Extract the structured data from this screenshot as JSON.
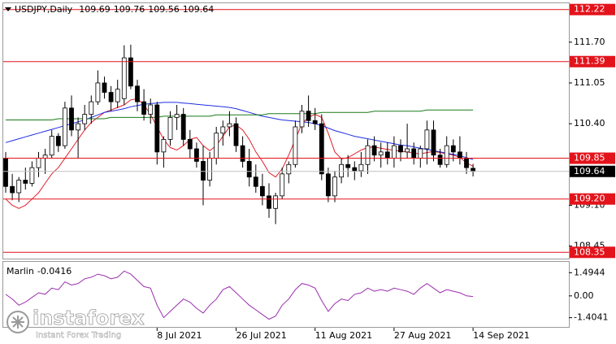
{
  "chart_data": {
    "type": "candlestick",
    "title": "USDJPY,Daily",
    "categories": [
      null,
      null,
      null,
      null,
      null,
      null,
      null,
      null,
      null,
      null,
      null,
      null,
      null,
      null,
      null,
      null,
      null,
      null,
      null,
      null,
      null,
      null,
      null,
      "8 Jul 2021",
      null,
      null,
      null,
      null,
      null,
      null,
      null,
      null,
      null,
      null,
      null,
      "26 Jul 2021",
      null,
      null,
      null,
      null,
      null,
      null,
      null,
      null,
      null,
      null,
      null,
      "11 Aug 2021",
      null,
      null,
      null,
      null,
      null,
      null,
      null,
      null,
      null,
      null,
      null,
      "27 Aug 2021",
      null,
      null,
      null,
      null,
      null,
      null,
      null,
      null,
      null,
      null,
      null,
      "14 Sep 2021"
    ],
    "open": [
      109.85,
      109.4,
      109.3,
      109.5,
      109.45,
      109.7,
      109.85,
      109.9,
      110.2,
      110.05,
      110.65,
      110.3,
      110.4,
      110.55,
      110.75,
      111.05,
      110.9,
      110.75,
      110.8,
      111.45,
      111.0,
      110.75,
      110.55,
      110.7,
      109.95,
      110.15,
      110.5,
      110.55,
      110.15,
      110.0,
      109.8,
      109.5,
      109.85,
      110.25,
      110.35,
      110.4,
      110.05,
      109.8,
      109.55,
      109.4,
      109.25,
      109.05,
      109.25,
      109.6,
      109.75,
      110.35,
      110.6,
      110.45,
      110.4,
      109.6,
      109.25,
      109.55,
      109.75,
      109.7,
      109.65,
      109.75,
      110.05,
      109.9,
      109.95,
      109.85,
      110.05,
      109.95,
      110.0,
      109.85,
      110.0,
      110.3,
      109.9,
      109.75,
      110.05,
      109.95,
      109.85,
      109.69
    ],
    "high": [
      109.95,
      109.6,
      109.55,
      109.7,
      109.8,
      109.95,
      110.0,
      110.3,
      110.25,
      110.75,
      110.85,
      110.5,
      110.7,
      110.85,
      111.25,
      111.15,
      111.0,
      111.1,
      111.65,
      111.66,
      111.1,
      110.95,
      110.8,
      110.75,
      110.2,
      110.6,
      110.7,
      110.65,
      110.3,
      110.1,
      110.05,
      109.95,
      110.35,
      110.45,
      110.6,
      110.5,
      110.2,
      110.0,
      109.75,
      109.6,
      109.45,
      109.3,
      109.7,
      109.8,
      110.45,
      110.7,
      110.85,
      110.65,
      110.55,
      109.7,
      109.65,
      109.85,
      109.9,
      109.8,
      109.95,
      110.15,
      110.2,
      110.1,
      110.1,
      110.2,
      110.15,
      110.4,
      110.1,
      110.05,
      110.45,
      110.45,
      110.0,
      110.2,
      110.15,
      110.2,
      109.95,
      109.76
    ],
    "low": [
      109.3,
      109.18,
      109.15,
      109.35,
      109.4,
      109.55,
      109.6,
      109.85,
      109.95,
      110.0,
      110.2,
      109.85,
      110.3,
      110.4,
      110.7,
      110.8,
      110.6,
      110.65,
      110.7,
      110.95,
      110.6,
      110.45,
      110.4,
      109.75,
      109.7,
      110.05,
      110.3,
      110.05,
      109.85,
      109.7,
      109.1,
      109.4,
      109.75,
      110.05,
      110.2,
      109.95,
      109.7,
      109.4,
      109.3,
      109.1,
      108.9,
      108.8,
      109.2,
      109.45,
      109.7,
      110.25,
      110.35,
      110.3,
      109.5,
      109.15,
      109.15,
      109.45,
      109.55,
      109.5,
      109.55,
      109.6,
      109.8,
      109.7,
      109.75,
      109.7,
      109.8,
      109.85,
      109.75,
      109.7,
      109.75,
      109.8,
      109.7,
      109.7,
      109.8,
      109.75,
      109.6,
      109.56
    ],
    "close": [
      109.4,
      109.3,
      109.5,
      109.45,
      109.7,
      109.85,
      109.9,
      110.2,
      110.05,
      110.65,
      110.3,
      110.4,
      110.55,
      110.75,
      111.05,
      110.9,
      110.75,
      110.95,
      111.45,
      111.0,
      110.75,
      110.55,
      110.7,
      109.95,
      110.15,
      110.5,
      110.55,
      110.15,
      110.0,
      109.8,
      109.5,
      109.85,
      110.25,
      110.35,
      110.4,
      110.05,
      109.8,
      109.55,
      109.4,
      109.25,
      109.05,
      109.25,
      109.6,
      109.75,
      110.35,
      110.6,
      110.45,
      110.4,
      109.6,
      109.25,
      109.55,
      109.75,
      109.7,
      109.65,
      109.75,
      110.05,
      109.9,
      109.95,
      109.85,
      110.05,
      109.95,
      110.0,
      109.85,
      110.0,
      110.3,
      109.9,
      109.75,
      110.05,
      109.95,
      109.85,
      109.7,
      109.64
    ],
    "bull_color": "#ffffff",
    "bear_color": "#000000",
    "lines": [
      {
        "color": "#e0202a",
        "values": [
          109.2,
          109.1,
          109.05,
          109.1,
          109.2,
          109.3,
          109.45,
          109.6,
          109.7,
          109.85,
          110.0,
          110.15,
          110.3,
          110.42,
          110.5,
          110.58,
          110.62,
          110.66,
          110.7,
          110.78,
          110.8,
          110.7,
          110.55,
          110.35,
          110.15,
          110.02,
          109.98,
          110.05,
          110.15,
          110.18,
          110.05,
          109.97,
          110.05,
          110.2,
          110.35,
          110.38,
          110.3,
          110.15,
          109.95,
          109.8,
          109.62,
          109.55,
          109.68,
          109.9,
          110.15,
          110.4,
          110.5,
          110.55,
          110.5,
          110.25,
          109.95,
          109.84,
          109.86,
          109.92,
          109.98,
          110.02,
          110.03,
          110.01,
          109.99,
          109.98,
          109.96,
          109.95,
          109.93,
          109.92,
          109.94,
          109.96,
          109.94,
          109.92,
          109.9,
          109.86,
          109.78,
          109.72
        ]
      },
      {
        "color": "#1f2ee0",
        "values": [
          110.1,
          110.13,
          110.16,
          110.19,
          110.22,
          110.25,
          110.28,
          110.31,
          110.34,
          110.37,
          110.4,
          110.43,
          110.46,
          110.5,
          110.54,
          110.58,
          110.6,
          110.62,
          110.64,
          110.67,
          110.69,
          110.71,
          110.72,
          110.73,
          110.74,
          110.74,
          110.74,
          110.73,
          110.72,
          110.71,
          110.7,
          110.69,
          110.68,
          110.67,
          110.66,
          110.64,
          110.61,
          110.58,
          110.55,
          110.52,
          110.5,
          110.48,
          110.46,
          110.45,
          110.44,
          110.43,
          110.42,
          110.4,
          110.37,
          110.33,
          110.29,
          110.26,
          110.23,
          110.2,
          110.18,
          110.16,
          110.14,
          110.12,
          110.1,
          110.08,
          110.06,
          110.05,
          110.03,
          110.01,
          109.99,
          109.97,
          109.95,
          109.93,
          109.91,
          109.89,
          109.86,
          109.83
        ]
      },
      {
        "color": "#1a7a1a",
        "values": [
          110.46,
          110.46,
          110.46,
          110.46,
          110.46,
          110.46,
          110.46,
          110.46,
          110.48,
          110.48,
          110.48,
          110.48,
          110.48,
          110.48,
          110.48,
          110.48,
          110.5,
          110.5,
          110.5,
          110.5,
          110.5,
          110.5,
          110.5,
          110.5,
          110.52,
          110.52,
          110.52,
          110.52,
          110.52,
          110.52,
          110.52,
          110.52,
          110.54,
          110.54,
          110.54,
          110.54,
          110.54,
          110.54,
          110.54,
          110.54,
          110.56,
          110.56,
          110.56,
          110.56,
          110.56,
          110.56,
          110.56,
          110.56,
          110.58,
          110.58,
          110.58,
          110.58,
          110.58,
          110.58,
          110.58,
          110.58,
          110.6,
          110.6,
          110.6,
          110.6,
          110.6,
          110.6,
          110.6,
          110.6,
          110.62,
          110.62,
          110.62,
          110.62,
          110.62,
          110.62,
          110.62,
          110.62
        ]
      }
    ],
    "ylim": [
      108.25,
      112.32
    ],
    "yticks": [
      {
        "value": 111.7,
        "label": "111.70"
      },
      111.05,
      {
        "value": 110.4,
        "label": "110.40"
      },
      {
        "value": 109.1,
        "label": "109.10"
      },
      108.45
    ],
    "levels": [
      112.22,
      111.39,
      109.85,
      {
        "value": 109.2,
        "label": "109.20"
      },
      108.35
    ],
    "level_color": "#e3131b",
    "indicator": {
      "type": "line",
      "name": "Marlin",
      "color": "#9b2fae",
      "values": [
        0.1,
        -0.2,
        -0.6,
        -0.4,
        -0.1,
        0.2,
        0.1,
        0.5,
        0.4,
        0.9,
        0.7,
        0.8,
        1.1,
        1.2,
        1.4,
        1.3,
        1.1,
        1.2,
        1.6,
        1.4,
        1.0,
        0.6,
        0.5,
        -0.6,
        -1.4,
        -1.0,
        -0.6,
        -0.2,
        -0.4,
        -0.8,
        -1.1,
        -0.6,
        -0.2,
        0.4,
        0.6,
        0.2,
        -0.2,
        -0.6,
        -0.9,
        -1.2,
        -1.5,
        -1.3,
        -0.6,
        -0.2,
        0.4,
        0.8,
        0.7,
        0.5,
        -0.3,
        -1.0,
        -0.5,
        -0.2,
        -0.3,
        0.1,
        0.2,
        0.5,
        0.3,
        0.4,
        0.3,
        0.5,
        0.4,
        0.3,
        0.1,
        0.5,
        0.8,
        0.5,
        0.2,
        0.4,
        0.3,
        0.2,
        0.0,
        -0.0416
      ],
      "ylim": [
        -2.05,
        2.19
      ],
      "yticks": [
        1.4944,
        {
          "value": 0,
          "label": "0.00"
        },
        -1.4041
      ]
    }
  },
  "logo": {
    "name": "instaforex",
    "tagline": "Instant Forex Trading"
  }
}
